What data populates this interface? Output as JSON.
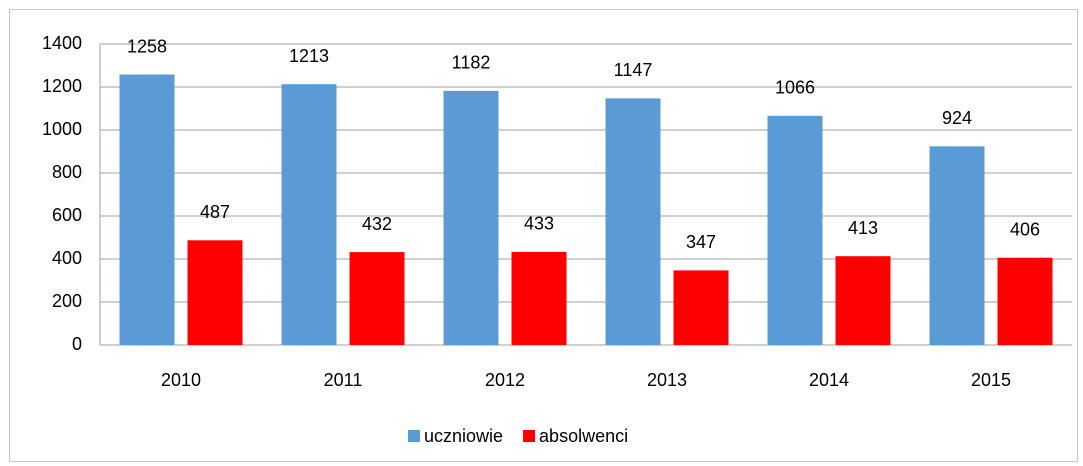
{
  "chart_data": {
    "type": "bar",
    "categories": [
      "2010",
      "2011",
      "2012",
      "2013",
      "2014",
      "2015"
    ],
    "series": [
      {
        "name": "uczniowie",
        "color": "#5b9bd5",
        "values": [
          1258,
          1213,
          1182,
          1147,
          1066,
          924
        ]
      },
      {
        "name": "absolwenci",
        "color": "#ff0000",
        "values": [
          487,
          432,
          433,
          347,
          413,
          406
        ]
      }
    ],
    "ylim": [
      0,
      1400
    ],
    "yticks": [
      0,
      200,
      400,
      600,
      800,
      1000,
      1200,
      1400
    ],
    "grid": true,
    "legend": "bottom"
  }
}
